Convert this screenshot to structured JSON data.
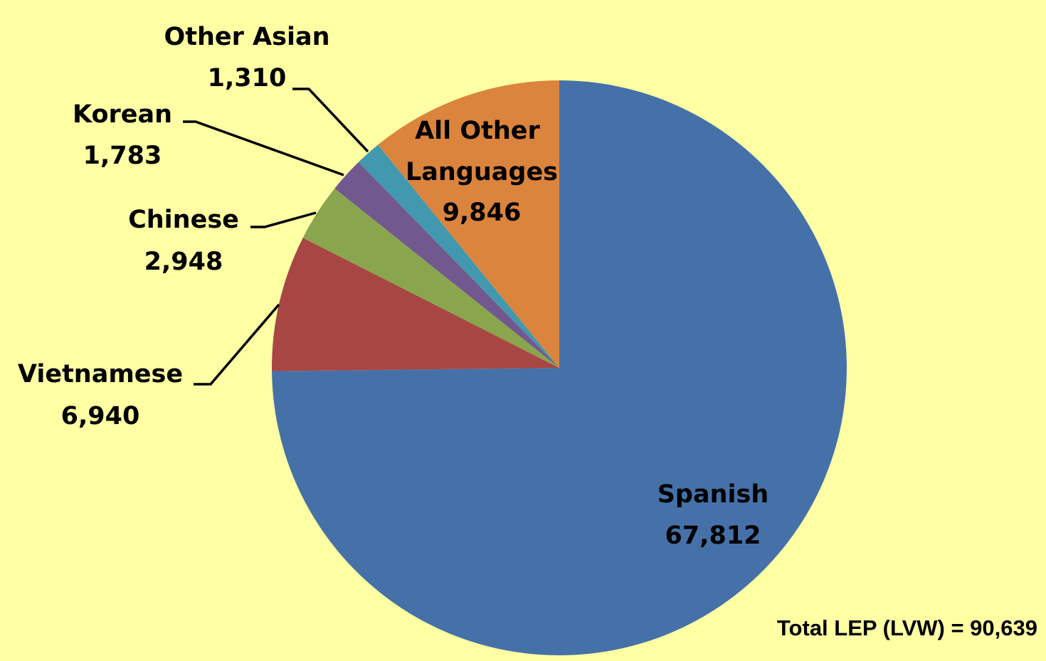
{
  "chart_data": {
    "type": "pie",
    "title": "",
    "slices": [
      {
        "label": "Spanish",
        "value": 67812,
        "value_label": "67,812",
        "color": "#4571A8"
      },
      {
        "label": "Vietnamese",
        "value": 6940,
        "value_label": "6,940",
        "color": "#A84644"
      },
      {
        "label": "Chinese",
        "value": 2948,
        "value_label": "2,948",
        "color": "#89A54E"
      },
      {
        "label": "Korean",
        "value": 1783,
        "value_label": "1,783",
        "color": "#71588F"
      },
      {
        "label": "Other Asian",
        "value": 1310,
        "value_label": "1,310",
        "color": "#4198AF"
      },
      {
        "label": "All Other Languages",
        "value": 9846,
        "value_label": "9,846",
        "color": "#DB843D"
      }
    ],
    "start_angle": "12 o'clock",
    "direction": "clockwise",
    "total_note": "Total LEP (LVW) = 90,639"
  },
  "colors": {
    "background": "#FFFFA3"
  }
}
